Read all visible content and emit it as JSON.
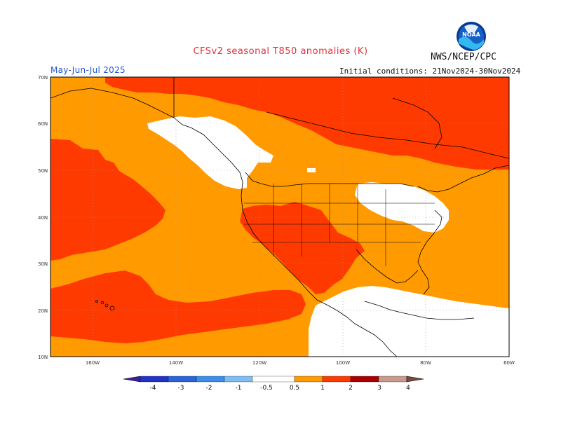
{
  "title": "CFSv2 seasonal T850 anomalies (K)",
  "agency": "NWS/NCEP/CPC",
  "logo_text": "NOAA",
  "period": "May-Jun-Jul 2025",
  "initial_conditions": "Initial conditions: 21Nov2024-30Nov2024",
  "lat_ticks": [
    "70N",
    "60N",
    "50N",
    "40N",
    "30N",
    "20N",
    "10N"
  ],
  "lon_ticks": [
    "160W",
    "140W",
    "120W",
    "100W",
    "80W",
    "60W"
  ],
  "colorbar": {
    "labels": [
      "-4",
      "-3",
      "-2",
      "-1",
      "-0.5",
      "0.5",
      "1",
      "2",
      "3",
      "4"
    ],
    "colors": [
      "#3a1fa0",
      "#2233c8",
      "#2b63d8",
      "#3b8fe8",
      "#7fbdf5",
      "#ffffff",
      "#ff9a00",
      "#ff3a00",
      "#a80000",
      "#c99a8e",
      "#7a4a3e"
    ]
  },
  "map_colors": {
    "anomaly_0_5_to_1": "#ff9a00",
    "anomaly_1_to_2": "#ff3a00",
    "anomaly_2_to_3": "#a80000",
    "neutral": "#ffffff"
  }
}
